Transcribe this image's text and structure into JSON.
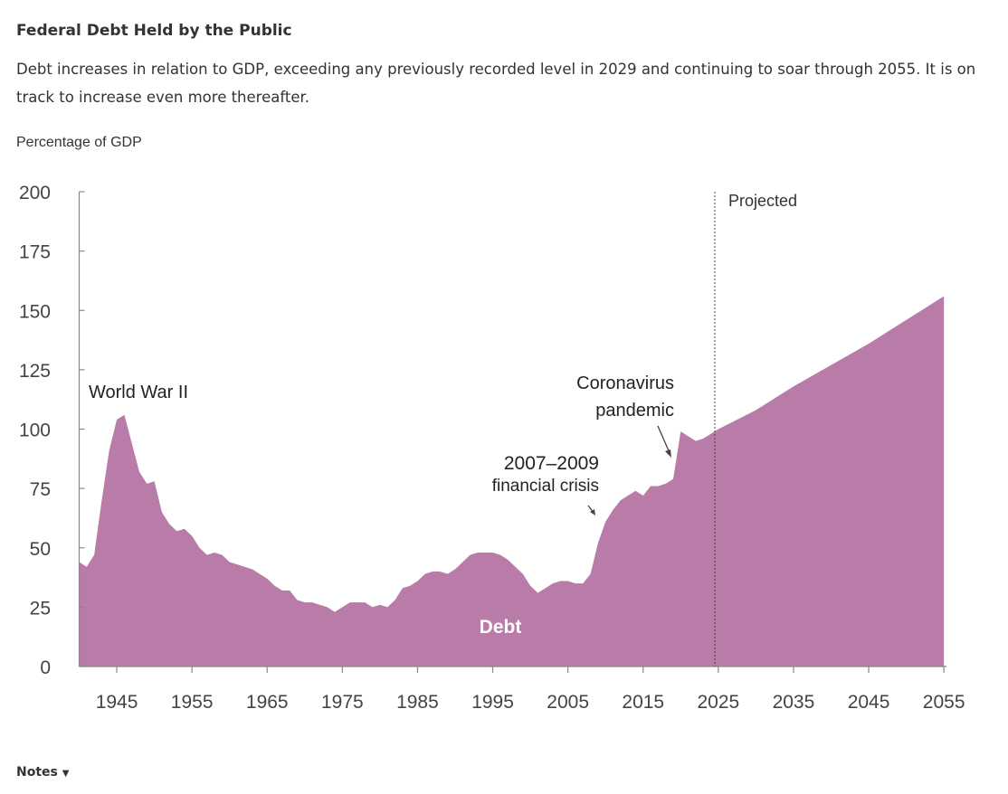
{
  "header": {
    "title": "Federal Debt Held by the Public",
    "subtitle": "Debt increases in relation to GDP, exceeding any previously recorded level in 2029 and continuing to soar through 2055. It is on track to increase even more thereafter."
  },
  "notes": {
    "label": "Notes",
    "icon": "caret-down-icon"
  },
  "colors": {
    "area": "#b97ca8",
    "text": "#333333"
  },
  "chart_data": {
    "type": "area",
    "title": "Federal Debt Held by the Public",
    "ylabel": "Percentage of GDP",
    "xlabel": "",
    "ylim": [
      0,
      200
    ],
    "xlim": [
      1940,
      2055
    ],
    "yticks": [
      0,
      25,
      50,
      75,
      100,
      125,
      150,
      175,
      200
    ],
    "xticks": [
      1945,
      1955,
      1965,
      1975,
      1985,
      1995,
      2005,
      2015,
      2025,
      2035,
      2045,
      2055
    ],
    "grid": false,
    "projection_start": 2024.5,
    "series": [
      {
        "name": "Debt",
        "x": [
          1940,
          1941,
          1942,
          1943,
          1944,
          1945,
          1946,
          1947,
          1948,
          1949,
          1950,
          1951,
          1952,
          1953,
          1954,
          1955,
          1956,
          1957,
          1958,
          1959,
          1960,
          1961,
          1962,
          1963,
          1964,
          1965,
          1966,
          1967,
          1968,
          1969,
          1970,
          1971,
          1972,
          1973,
          1974,
          1975,
          1976,
          1977,
          1978,
          1979,
          1980,
          1981,
          1982,
          1983,
          1984,
          1985,
          1986,
          1987,
          1988,
          1989,
          1990,
          1991,
          1992,
          1993,
          1994,
          1995,
          1996,
          1997,
          1998,
          1999,
          2000,
          2001,
          2002,
          2003,
          2004,
          2005,
          2006,
          2007,
          2008,
          2009,
          2010,
          2011,
          2012,
          2013,
          2014,
          2015,
          2016,
          2017,
          2018,
          2019,
          2020,
          2021,
          2022,
          2023,
          2024,
          2025,
          2030,
          2035,
          2040,
          2045,
          2050,
          2055
        ],
        "values": [
          44,
          42,
          47,
          70,
          91,
          104,
          106,
          94,
          82,
          77,
          78,
          65,
          60,
          57,
          58,
          55,
          50,
          47,
          48,
          47,
          44,
          43,
          42,
          41,
          39,
          37,
          34,
          32,
          32,
          28,
          27,
          27,
          26,
          25,
          23,
          25,
          27,
          27,
          27,
          25,
          26,
          25,
          28,
          33,
          34,
          36,
          39,
          40,
          40,
          39,
          41,
          44,
          47,
          48,
          48,
          48,
          47,
          45,
          42,
          39,
          34,
          31,
          33,
          35,
          36,
          36,
          35,
          35,
          39,
          52,
          61,
          66,
          70,
          72,
          74,
          72,
          76,
          76,
          77,
          79,
          99,
          97,
          95,
          96,
          98,
          100,
          108,
          118,
          127,
          136,
          146,
          156
        ]
      }
    ],
    "annotations": {
      "ww2": "World War II",
      "crisis_year": "2007–2009",
      "crisis_label": "financial crisis",
      "covid_line1": "Coronavirus",
      "covid_line2": "pandemic",
      "series_label": "Debt",
      "projected": "Projected"
    }
  }
}
